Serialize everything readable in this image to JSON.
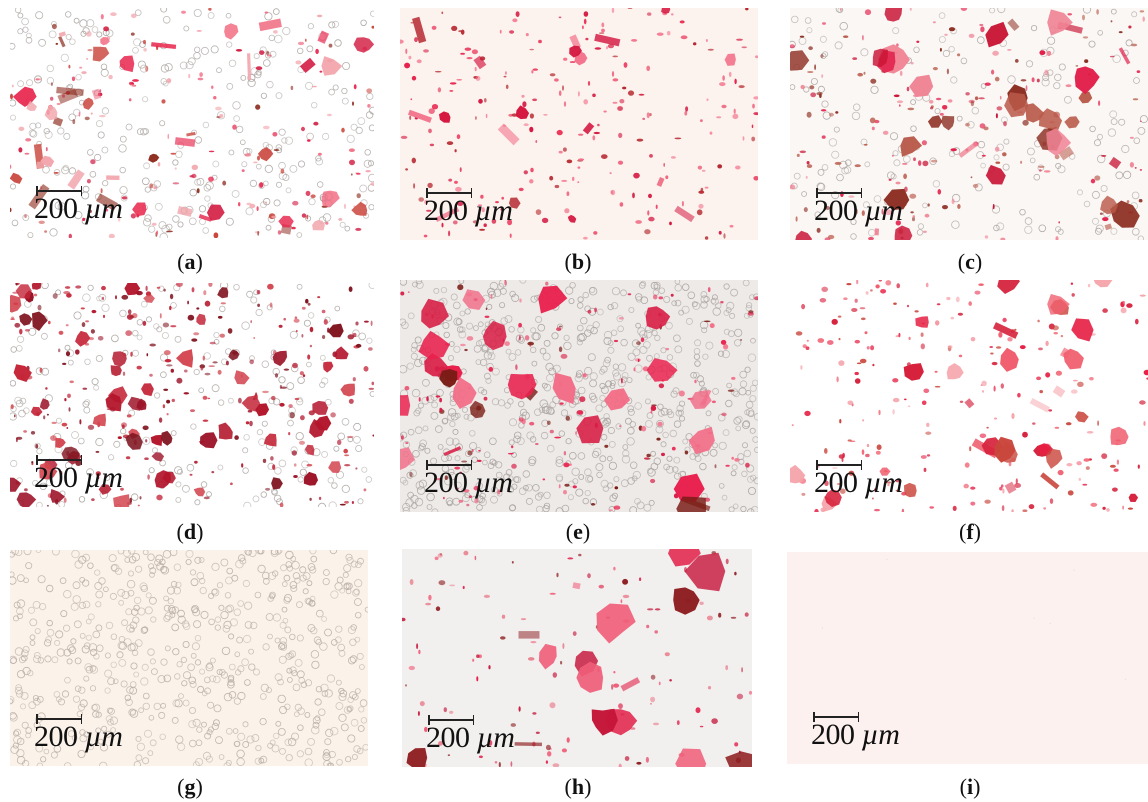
{
  "panels": [
    {
      "id": "a",
      "label": "a",
      "scale_value": "200",
      "scale_unit": "µm",
      "bg": "#ffffff",
      "stain": [
        "#e8254c",
        "#d41f45",
        "#f06a80",
        "#c9453c",
        "#f2a7ad",
        "#8c2a1c"
      ],
      "cells": true
    },
    {
      "id": "b",
      "label": "b",
      "scale_value": "200",
      "scale_unit": "µm",
      "bg": "#fdf3ee",
      "stain": [
        "#e8234b",
        "#d4163f",
        "#f26b86",
        "#b5262e"
      ],
      "cells": false
    },
    {
      "id": "c",
      "label": "c",
      "scale_value": "200",
      "scale_unit": "µm",
      "bg": "#fbf7f5",
      "stain": [
        "#e21d48",
        "#c91636",
        "#8f3226",
        "#b95a4a",
        "#f08394"
      ],
      "cells": true
    },
    {
      "id": "d",
      "label": "d",
      "scale_value": "200",
      "scale_unit": "µm",
      "bg": "#ffffff",
      "stain": [
        "#b3162c",
        "#9c1227",
        "#c42639",
        "#80141f",
        "#d3454f"
      ],
      "cells": true
    },
    {
      "id": "e",
      "label": "e",
      "scale_value": "200",
      "scale_unit": "µm",
      "bg": "#eeeae8",
      "stain": [
        "#e9204c",
        "#d81d45",
        "#f26d87",
        "#7a1d15"
      ],
      "cells": true
    },
    {
      "id": "f",
      "label": "f",
      "scale_value": "200",
      "scale_unit": "µm",
      "bg": "#ffffff",
      "stain": [
        "#e61f43",
        "#d6223d",
        "#f06070",
        "#c9463c",
        "#f5a3aa"
      ],
      "cells": false
    },
    {
      "id": "g",
      "label": "g",
      "scale_value": "200",
      "scale_unit": "µm",
      "bg": "#fbf2ea",
      "stain": [],
      "cells": true
    },
    {
      "id": "h",
      "label": "h",
      "scale_value": "200",
      "scale_unit": "µm",
      "bg": "#f2f0ef",
      "stain": [
        "#e11b45",
        "#c5173b",
        "#8e1f22",
        "#f05d78",
        "#e87e8c"
      ],
      "cells": false
    },
    {
      "id": "i",
      "label": "i",
      "scale_value": "200",
      "scale_unit": "µm",
      "bg": "#fcf1ef",
      "stain": [],
      "cells": false
    }
  ]
}
